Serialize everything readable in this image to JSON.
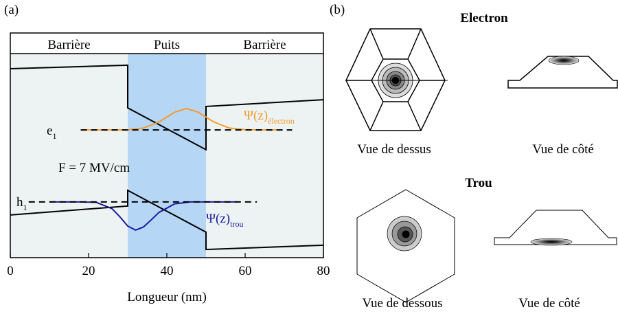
{
  "chart_data": {
    "type": "line",
    "panel_label": "(a)",
    "xlabel": "Longueur (nm)",
    "xlim": [
      0,
      80
    ],
    "xticks": [
      0,
      20,
      40,
      60,
      80
    ],
    "ylim": [
      0,
      100
    ],
    "background": "#edf3f2",
    "regions": [
      {
        "label": "Barrière",
        "range": [
          0,
          30
        ]
      },
      {
        "label": "Puits",
        "range": [
          30,
          50
        ],
        "color": "#b6d6f5"
      },
      {
        "label": "Barrière",
        "range": [
          50,
          80
        ]
      }
    ],
    "series": [
      {
        "color": "#000000",
        "x": [
          0,
          30,
          30,
          50,
          50,
          80
        ],
        "values": [
          92.6,
          94.3,
          73.4,
          52.9,
          74.1,
          77.4
        ]
      },
      {
        "color": "#000000",
        "x": [
          0,
          30,
          30,
          50,
          50,
          80
        ],
        "values": [
          20.9,
          25.3,
          33.0,
          12.5,
          4.0,
          6.1
        ]
      },
      {
        "color": "#f39a2e",
        "x": [
          18,
          22,
          26,
          30,
          34,
          38,
          42,
          45,
          48,
          52,
          56,
          60,
          64,
          68
        ],
        "values": [
          62.6,
          62.6,
          62.6,
          62.6,
          63.5,
          66.5,
          71.3,
          73.1,
          71.3,
          66.5,
          63.5,
          62.7,
          62.6,
          62.6
        ]
      },
      {
        "color": "#1a1aa0",
        "x": [
          10,
          14,
          18,
          22,
          26,
          28,
          30,
          32,
          34,
          36,
          38,
          42,
          46,
          50,
          54,
          58
        ],
        "values": [
          27.3,
          27.3,
          27.3,
          27.1,
          24.0,
          20.0,
          15.5,
          13.5,
          15.0,
          18.5,
          22.2,
          26.4,
          27.3,
          27.3,
          27.3,
          27.3
        ]
      },
      {
        "color": "#000000",
        "dashed": true,
        "x": [
          18,
          72
        ],
        "values": [
          62.6,
          62.6
        ]
      },
      {
        "color": "#000000",
        "dashed": true,
        "x": [
          4.7,
          63
        ],
        "values": [
          27.3,
          27.3
        ]
      }
    ],
    "annotations": [
      {
        "text": "e",
        "sub": "1"
      },
      {
        "text": "h",
        "sub": "1"
      },
      {
        "text": "F = 7 MV/cm"
      },
      {
        "text": "Ψ(z)",
        "sub": "électron",
        "color": "#f39a2e"
      },
      {
        "text": "Ψ(z)",
        "sub": "trou",
        "color": "#1a1aa0"
      }
    ]
  },
  "panel_b": {
    "panel_label": "(b)",
    "electron": {
      "title": "Electron",
      "top_view": "Vue de dessus",
      "side_view": "Vue de côté"
    },
    "hole": {
      "title": "Trou",
      "bottom_view": "Vue de dessous",
      "side_view": "Vue de côté"
    }
  }
}
